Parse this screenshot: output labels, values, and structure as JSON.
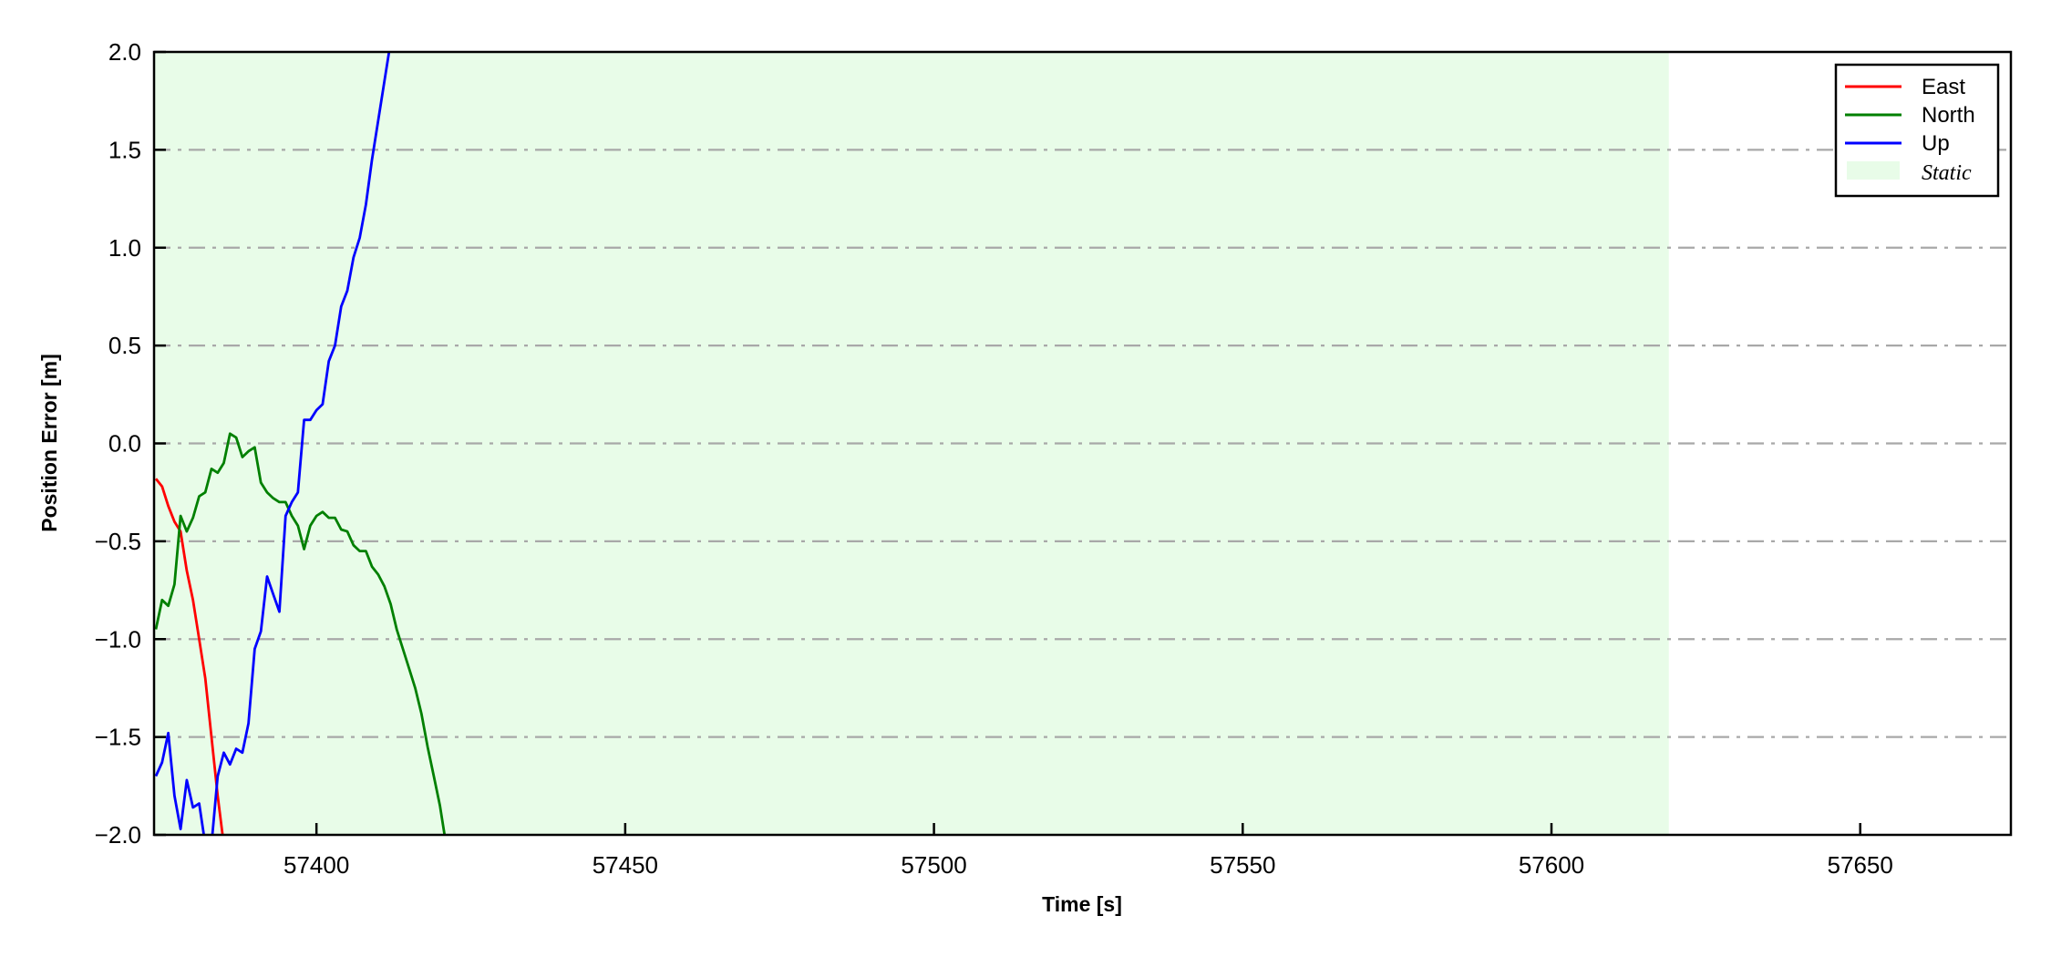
{
  "chart_data": {
    "type": "line",
    "title": "",
    "xlabel": "Time [s]",
    "ylabel": "Position Error [m]",
    "xlim": [
      57373.7,
      57674.4
    ],
    "ylim": [
      -2.0,
      2.0
    ],
    "xticks": [
      57400,
      57450,
      57500,
      57550,
      57600,
      57650
    ],
    "xtick_labels": [
      "57400",
      "57450",
      "57500",
      "57550",
      "57600",
      "57650"
    ],
    "yticks": [
      -2.0,
      -1.5,
      -1.0,
      -0.5,
      0.0,
      0.5,
      1.0,
      1.5,
      2.0
    ],
    "ytick_labels": [
      "−2.0",
      "−1.5",
      "−1.0",
      "−0.5",
      "0.0",
      "0.5",
      "1.0",
      "1.5",
      "2.0"
    ],
    "grid": "horizontal dash-dot",
    "legend_position": "top-right",
    "shaded_regions": [
      {
        "name": "Static",
        "x_start": 57373.7,
        "x_end": 57619,
        "color": "#e8fce8"
      }
    ],
    "series": [
      {
        "name": "East",
        "color": "#ff0000",
        "x": [
          57374,
          57375,
          57376,
          57377,
          57378,
          57379,
          57380,
          57381,
          57382,
          57383,
          57384,
          57385
        ],
        "y": [
          -0.18,
          -0.22,
          -0.32,
          -0.4,
          -0.45,
          -0.65,
          -0.8,
          -1.0,
          -1.2,
          -1.5,
          -1.8,
          -2.05
        ]
      },
      {
        "name": "North",
        "color": "#008000",
        "x": [
          57374,
          57375,
          57376,
          57377,
          57378,
          57379,
          57380,
          57381,
          57382,
          57383,
          57384,
          57385,
          57386,
          57387,
          57388,
          57389,
          57390,
          57391,
          57392,
          57393,
          57394,
          57395,
          57396,
          57397,
          57398,
          57399,
          57400,
          57401,
          57402,
          57403,
          57404,
          57405,
          57406,
          57407,
          57408,
          57409,
          57410,
          57411,
          57412,
          57413,
          57414,
          57415,
          57416,
          57417,
          57418,
          57419,
          57420,
          57421
        ],
        "y": [
          -0.95,
          -0.8,
          -0.83,
          -0.72,
          -0.37,
          -0.45,
          -0.38,
          -0.27,
          -0.25,
          -0.13,
          -0.15,
          -0.1,
          0.05,
          0.03,
          -0.07,
          -0.04,
          -0.02,
          -0.2,
          -0.25,
          -0.28,
          -0.3,
          -0.3,
          -0.37,
          -0.42,
          -0.54,
          -0.42,
          -0.37,
          -0.35,
          -0.38,
          -0.38,
          -0.44,
          -0.45,
          -0.52,
          -0.55,
          -0.55,
          -0.63,
          -0.67,
          -0.73,
          -0.82,
          -0.95,
          -1.05,
          -1.15,
          -1.25,
          -1.38,
          -1.55,
          -1.7,
          -1.85,
          -2.05
        ]
      },
      {
        "name": "Up",
        "color": "#0000ff",
        "x": [
          57374,
          57375,
          57376,
          57377,
          57378,
          57379,
          57380,
          57381,
          57382,
          57383,
          57384,
          57385,
          57386,
          57387,
          57388,
          57389,
          57390,
          57391,
          57392,
          57393,
          57394,
          57395,
          57396,
          57397,
          57398,
          57399,
          57400,
          57401,
          57402,
          57403,
          57404,
          57405,
          57406,
          57407,
          57408,
          57409,
          57410,
          57411,
          57412
        ],
        "y": [
          -1.7,
          -1.63,
          -1.48,
          -1.8,
          -1.97,
          -1.72,
          -1.86,
          -1.84,
          -2.05,
          -2.05,
          -1.7,
          -1.58,
          -1.64,
          -1.56,
          -1.58,
          -1.43,
          -1.05,
          -0.96,
          -0.68,
          -0.77,
          -0.86,
          -0.37,
          -0.3,
          -0.25,
          0.12,
          0.12,
          0.17,
          0.2,
          0.42,
          0.5,
          0.7,
          0.78,
          0.95,
          1.05,
          1.22,
          1.45,
          1.65,
          1.85,
          2.05
        ]
      }
    ]
  }
}
